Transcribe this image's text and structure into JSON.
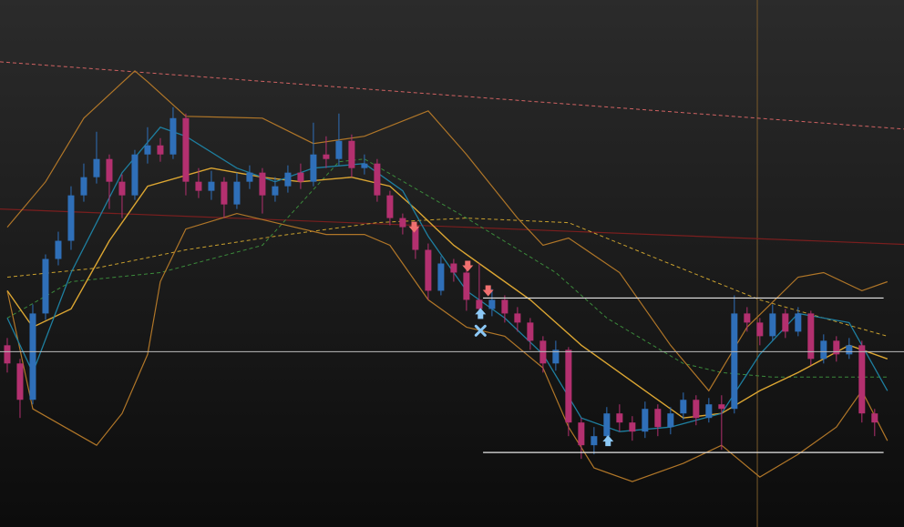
{
  "chart_data": {
    "type": "candlestick",
    "background": [
      "#2b2b2b",
      "#0c0c0c"
    ],
    "xlim": [
      -0.57,
      70.3
    ],
    "ylim": [
      0,
      580
    ],
    "up_color": "#2f6fb8",
    "down_color": "#b3306f",
    "candles": {
      "open": [
        200,
        180,
        140,
        235,
        295,
        315,
        365,
        385,
        405,
        380,
        365,
        410,
        420,
        410,
        450,
        380,
        370,
        380,
        355,
        380,
        390,
        365,
        375,
        390,
        380,
        410,
        405,
        425,
        395,
        400,
        365,
        340,
        330,
        305,
        260,
        290,
        280,
        250,
        240,
        250,
        235,
        225,
        205,
        180,
        195,
        115,
        90,
        100,
        125,
        115,
        105,
        130,
        110,
        125,
        140,
        120,
        135,
        130,
        235,
        225,
        210,
        235,
        215,
        235,
        185,
        205,
        190,
        200,
        125
      ],
      "high": [
        208,
        185,
        245,
        300,
        325,
        375,
        400,
        435,
        410,
        388,
        415,
        440,
        428,
        462,
        455,
        395,
        392,
        385,
        390,
        398,
        395,
        385,
        398,
        400,
        445,
        430,
        455,
        432,
        410,
        405,
        370,
        345,
        335,
        312,
        298,
        295,
        285,
        290,
        262,
        255,
        242,
        230,
        210,
        205,
        198,
        120,
        110,
        132,
        135,
        122,
        138,
        135,
        132,
        148,
        145,
        142,
        145,
        255,
        242,
        230,
        245,
        240,
        242,
        238,
        212,
        210,
        208,
        205,
        130
      ],
      "low": [
        170,
        120,
        135,
        228,
        288,
        305,
        358,
        378,
        350,
        340,
        360,
        400,
        402,
        405,
        365,
        362,
        360,
        340,
        350,
        372,
        345,
        358,
        368,
        372,
        375,
        395,
        398,
        385,
        388,
        358,
        332,
        322,
        295,
        250,
        255,
        270,
        238,
        230,
        232,
        225,
        215,
        195,
        170,
        172,
        100,
        75,
        80,
        92,
        105,
        95,
        98,
        100,
        102,
        118,
        112,
        115,
        85,
        125,
        215,
        200,
        205,
        208,
        210,
        178,
        180,
        182,
        185,
        115,
        100
      ],
      "close": [
        180,
        140,
        235,
        295,
        315,
        365,
        385,
        405,
        380,
        365,
        410,
        420,
        410,
        450,
        380,
        370,
        380,
        355,
        380,
        390,
        365,
        375,
        390,
        380,
        410,
        405,
        425,
        395,
        400,
        365,
        340,
        330,
        305,
        260,
        290,
        280,
        250,
        240,
        250,
        235,
        225,
        205,
        180,
        195,
        115,
        90,
        100,
        125,
        115,
        105,
        130,
        110,
        125,
        140,
        120,
        135,
        130,
        235,
        225,
        210,
        235,
        215,
        235,
        185,
        205,
        190,
        200,
        125,
        115
      ]
    },
    "lines": [
      {
        "color": "#d06262",
        "dash": true,
        "width": 1,
        "x": [
          -0.57,
          70.3
        ],
        "values": [
          512,
          438
        ]
      },
      {
        "color": "#7a1e1e",
        "dash": false,
        "width": 1.2,
        "x": [
          -0.57,
          70.3
        ],
        "values": [
          350,
          311
        ]
      },
      {
        "color": "#c9a02e",
        "dash": true,
        "width": 1,
        "x": [
          0,
          7,
          14,
          21,
          29,
          36,
          44,
          51,
          59,
          69
        ],
        "values": [
          275,
          285,
          305,
          320,
          335,
          340,
          335,
          295,
          250,
          210
        ]
      },
      {
        "color": "#3b8a3b",
        "dash": true,
        "width": 1,
        "x": [
          0,
          5,
          12,
          20,
          26,
          28,
          36,
          43,
          47,
          53,
          56,
          60,
          69
        ],
        "values": [
          230,
          270,
          280,
          310,
          402,
          405,
          340,
          280,
          230,
          180,
          170,
          165,
          165
        ]
      },
      {
        "color": "#b07628",
        "dash": false,
        "width": 1.2,
        "x": [
          0,
          3,
          6,
          10,
          11,
          14,
          20,
          24,
          28,
          33,
          36,
          40,
          42,
          44,
          48,
          52,
          55,
          58,
          62,
          64,
          67,
          69
        ],
        "values": [
          330,
          380,
          450,
          502,
          490,
          452,
          450,
          422,
          430,
          458,
          410,
          340,
          310,
          318,
          280,
          200,
          150,
          220,
          275,
          280,
          260,
          270
        ]
      },
      {
        "color": "#b07628",
        "dash": false,
        "width": 1.2,
        "x": [
          0,
          2,
          7,
          9,
          11,
          12,
          14,
          18,
          21,
          25,
          28,
          30,
          33,
          36,
          39,
          42,
          44,
          46,
          49,
          53,
          56,
          59,
          62,
          65,
          67,
          69
        ],
        "values": [
          260,
          130,
          90,
          125,
          190,
          270,
          328,
          345,
          335,
          322,
          322,
          310,
          250,
          220,
          210,
          175,
          110,
          65,
          50,
          70,
          90,
          55,
          80,
          110,
          150,
          95
        ]
      },
      {
        "color": "#dca632",
        "dash": false,
        "width": 1.4,
        "x": [
          0,
          2,
          5,
          8,
          11,
          16,
          20,
          23,
          27,
          30,
          32,
          35,
          38,
          41,
          45,
          50,
          53,
          56,
          59,
          62,
          66,
          69
        ],
        "values": [
          260,
          220,
          240,
          315,
          375,
          395,
          385,
          380,
          385,
          375,
          350,
          310,
          280,
          250,
          200,
          150,
          120,
          125,
          150,
          170,
          200,
          185
        ]
      },
      {
        "color": "#1e7fa0",
        "dash": false,
        "width": 1.3,
        "x": [
          0,
          2,
          5,
          9,
          12,
          14,
          18,
          21,
          24,
          28,
          31,
          33,
          36,
          39,
          42,
          45,
          48,
          52,
          56,
          59,
          62,
          66,
          69
        ],
        "values": [
          230,
          170,
          280,
          390,
          440,
          430,
          395,
          380,
          395,
          400,
          370,
          320,
          260,
          230,
          190,
          120,
          105,
          110,
          125,
          190,
          235,
          225,
          150
        ]
      }
    ],
    "levels": [
      {
        "color": "#e6e6e6",
        "value": 252,
        "x": [
          37.3,
          68.7
        ]
      },
      {
        "color": "#e6e6e6",
        "value": 82,
        "x": [
          37.3,
          68.7
        ]
      }
    ],
    "crosshair": {
      "x": 58.8,
      "y": 193,
      "h_color": "#bdbdbd",
      "v_color": "#7a5a2a"
    },
    "sell_signals": {
      "color": "#f07070",
      "x": [
        31.9,
        36.1,
        37.7
      ],
      "values": [
        330,
        287,
        260
      ]
    },
    "buy_signals": {
      "color": "#8cc8f5",
      "x": [
        37.1,
        47.1
      ],
      "values": [
        235,
        95
      ]
    },
    "exit_signals": {
      "color": "#8cc8f5",
      "x": [
        37.1
      ],
      "values": [
        216
      ]
    }
  }
}
